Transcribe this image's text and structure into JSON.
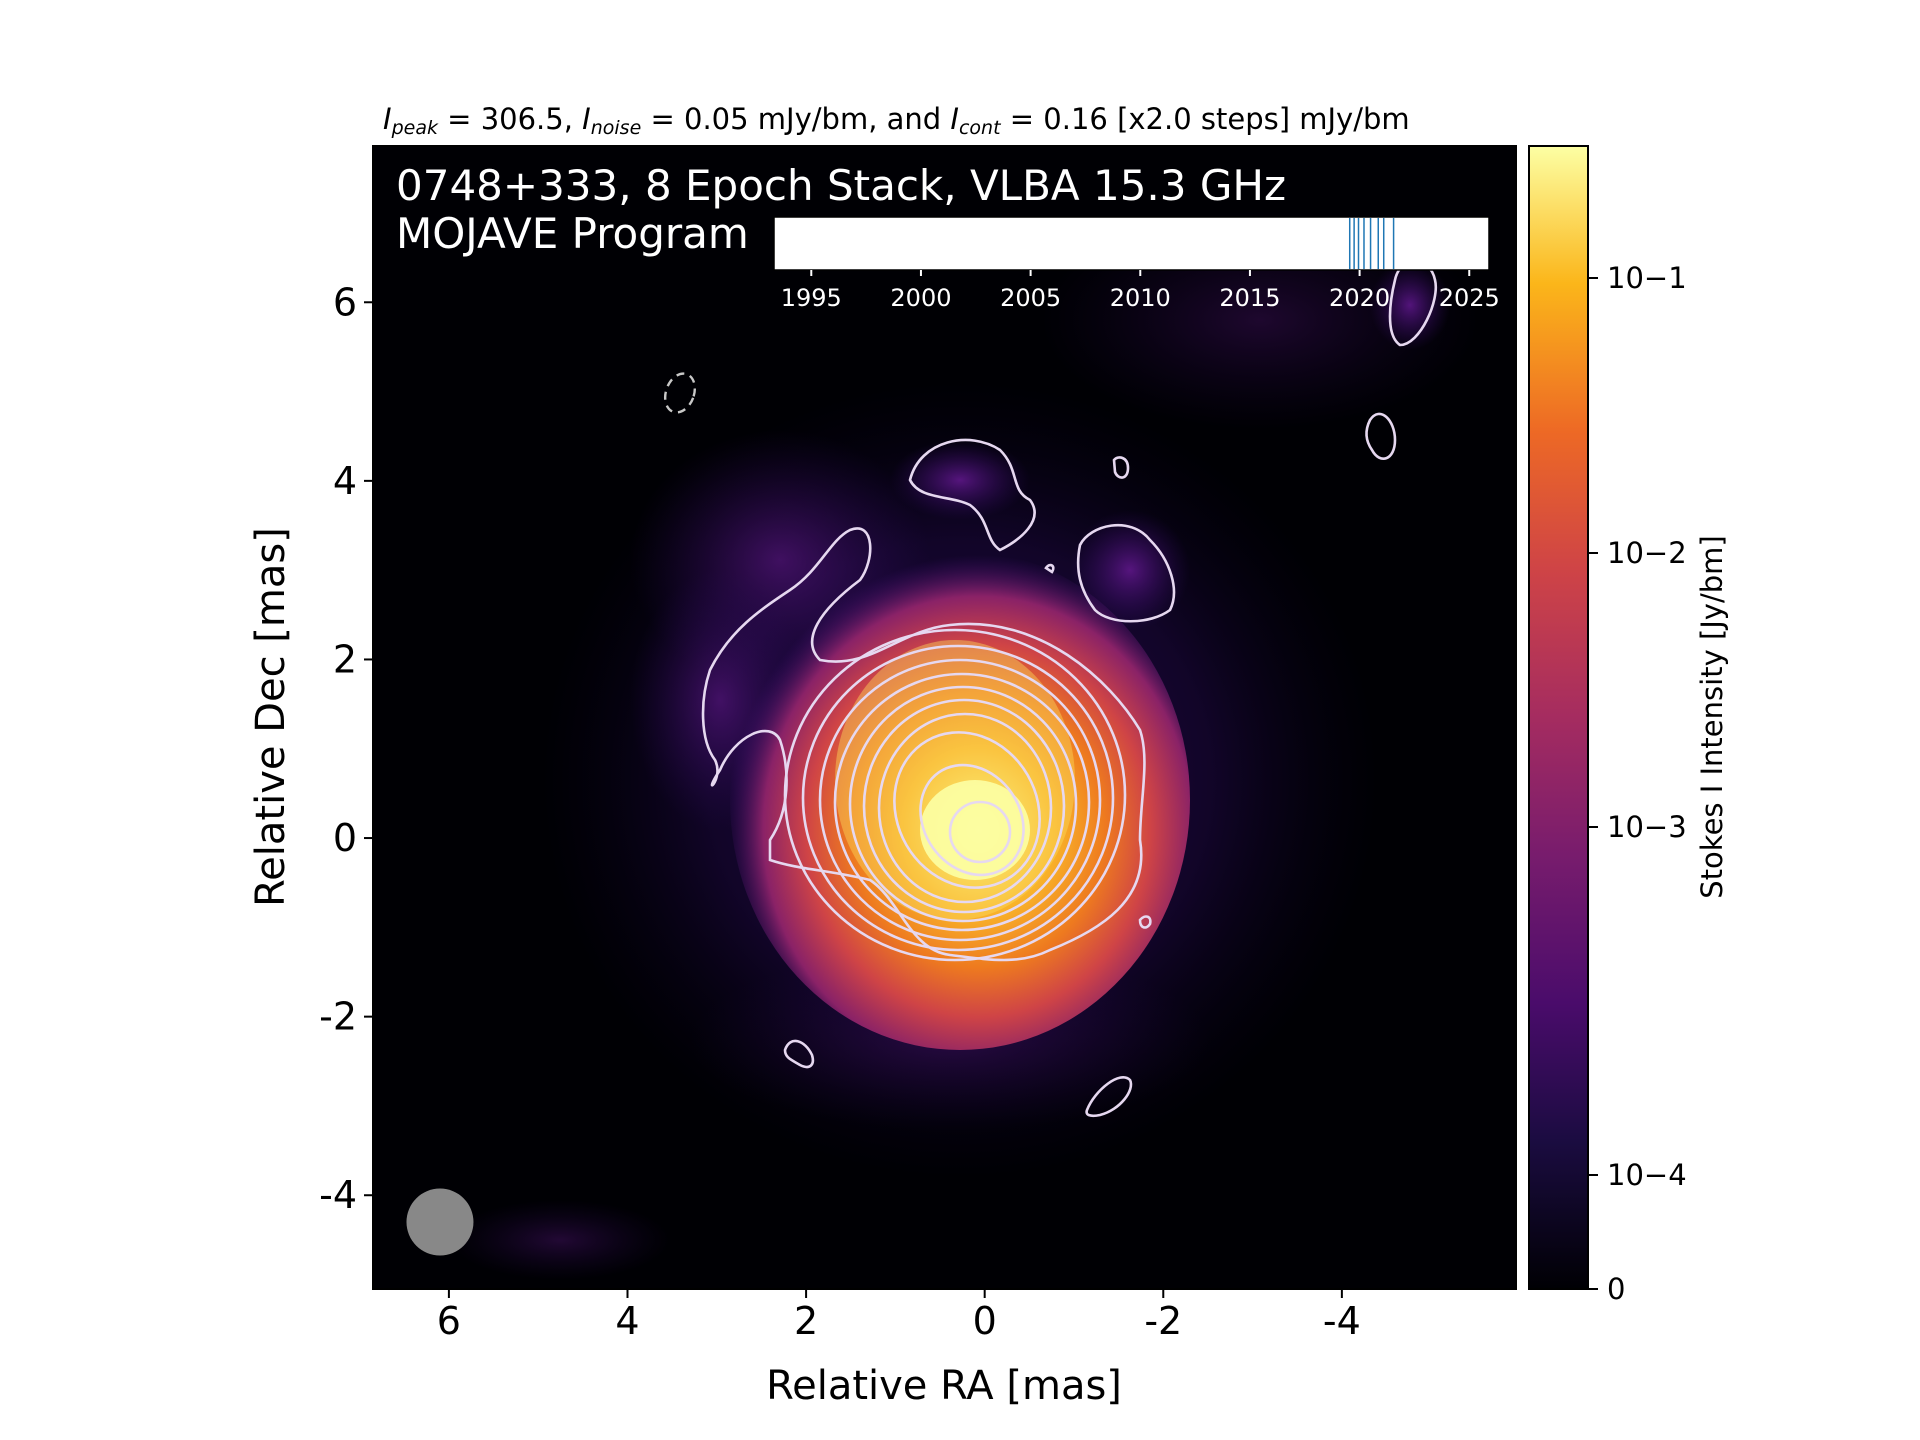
{
  "header": {
    "ipeak_sym": "I",
    "ipeak_sub": "peak",
    "ipeak_val": " = 306.5, ",
    "inoise_sym": "I",
    "inoise_sub": "noise",
    "inoise_val": " = 0.05 mJy/bm, and ",
    "icont_sym": "I",
    "icont_sub": "cont",
    "icont_val": " = 0.16 [x2.0 steps] mJy/bm"
  },
  "overlay": {
    "title_line1": "0748+333, 8 Epoch Stack, VLBA 15.3 GHz",
    "title_line2": "MOJAVE Program"
  },
  "timeline": {
    "range": [
      1993.3,
      2025.9
    ],
    "ticks": [
      "1995",
      "2000",
      "2005",
      "2010",
      "2015",
      "2020",
      "2025"
    ],
    "tick_values": [
      1995,
      2000,
      2005,
      2010,
      2015,
      2020,
      2025
    ],
    "epochs": [
      2019.55,
      2019.75,
      2019.95,
      2020.2,
      2020.5,
      2020.85,
      2021.1,
      2021.55
    ],
    "epoch_color": "#1f77b4"
  },
  "chart_data": {
    "type": "heatmap",
    "title": "0748+333, 8 Epoch Stack, VLBA 15.3 GHz",
    "xlabel": "Relative RA [mas]",
    "ylabel": "Relative Dec [mas]",
    "xlim": [
      6.85,
      -5.95
    ],
    "ylim": [
      -5.05,
      7.75
    ],
    "x_ticks": [
      6,
      4,
      2,
      0,
      -2,
      -4
    ],
    "x_tick_labels": [
      "6",
      "4",
      "2",
      "0",
      "-2",
      "-4"
    ],
    "y_ticks": [
      6,
      4,
      2,
      0,
      -2,
      -4
    ],
    "y_tick_labels": [
      "6",
      "4",
      "2",
      "0",
      "-2",
      "-4"
    ],
    "peak_mJy_per_beam": 306.5,
    "noise_mJy_per_beam": 0.05,
    "lowest_contour_mJy_per_beam": 0.16,
    "contour_step_factor": 2.0,
    "beam": {
      "ra": 6.1,
      "dec": -4.3,
      "diameter_mas": 0.75,
      "color": "#888888"
    },
    "colorbar": {
      "label": "Stokes I Intensity [Jy/bm]",
      "scale": "log",
      "ticks": [
        "10−1",
        "10−2",
        "10−3",
        "10−4",
        "0"
      ],
      "colormap": "inferno"
    },
    "colors": {
      "background": "#000004",
      "contour": "#e6d8f0",
      "negative_contour": "#c8c8c8"
    }
  }
}
